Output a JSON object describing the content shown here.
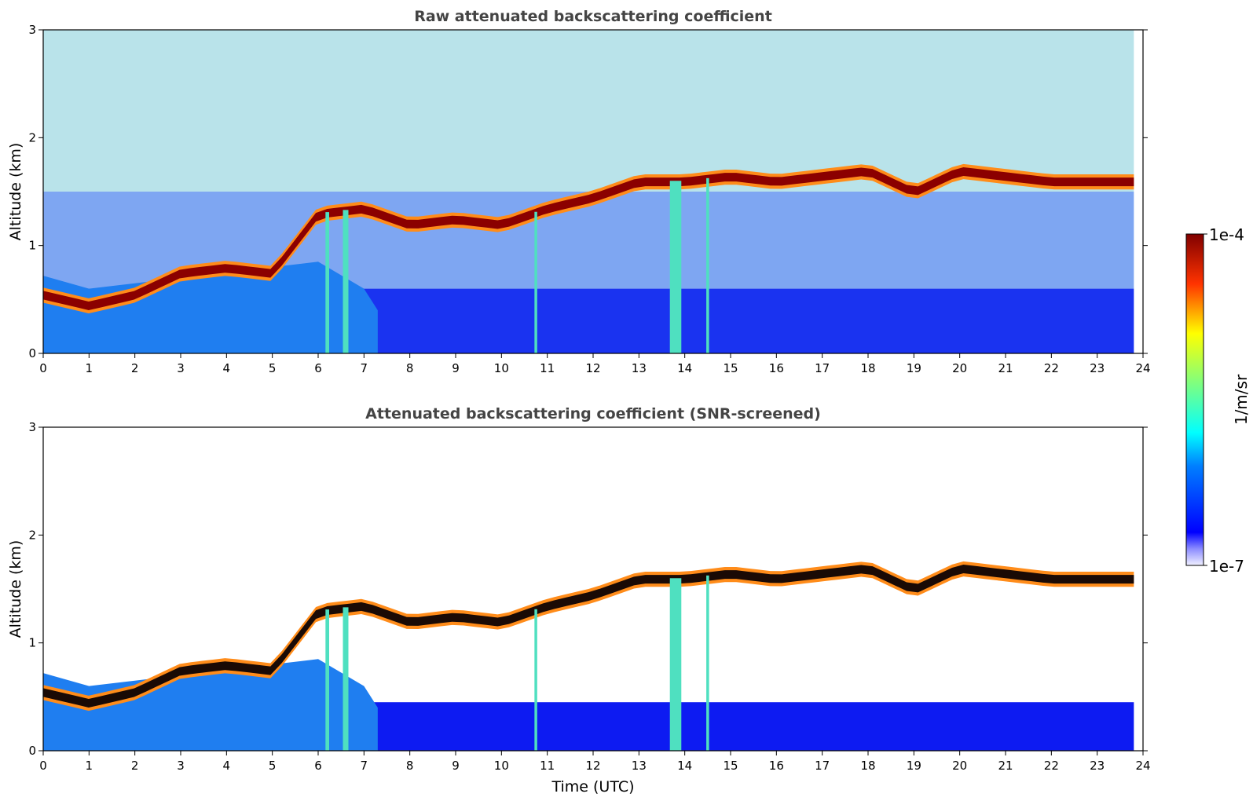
{
  "chart_data": [
    {
      "type": "heatmap",
      "title": "Raw attenuated backscattering coefficient",
      "xlabel": "",
      "ylabel": "Altitude (km)",
      "xlim": [
        0,
        24
      ],
      "ylim": [
        0,
        3
      ],
      "xticks": [
        "0",
        "1",
        "2",
        "3",
        "4",
        "5",
        "6",
        "7",
        "8",
        "9",
        "10",
        "11",
        "12",
        "13",
        "14",
        "15",
        "16",
        "17",
        "18",
        "19",
        "20",
        "21",
        "22",
        "23",
        "24"
      ],
      "yticks": [
        "0",
        "1",
        "2",
        "3"
      ],
      "data_end_time": 23.8,
      "cloud_layer_top_km": {
        "x": [
          0,
          1,
          2,
          3,
          4,
          5,
          6,
          7,
          8,
          9,
          10,
          11,
          12,
          13,
          14,
          15,
          16,
          17,
          18,
          19,
          20,
          21,
          22,
          23,
          23.8
        ],
        "y": [
          0.55,
          0.45,
          0.55,
          0.75,
          0.8,
          0.75,
          1.3,
          1.35,
          1.2,
          1.25,
          1.2,
          1.35,
          1.45,
          1.6,
          1.6,
          1.65,
          1.6,
          1.65,
          1.7,
          1.5,
          1.7,
          1.65,
          1.6,
          1.6,
          1.6
        ]
      }
    },
    {
      "type": "heatmap",
      "title": "Attenuated backscattering coefficient (SNR-screened)",
      "xlabel": "Time (UTC)",
      "ylabel": "Altitude (km)",
      "xlim": [
        0,
        24
      ],
      "ylim": [
        0,
        3
      ],
      "xticks": [
        "0",
        "1",
        "2",
        "3",
        "4",
        "5",
        "6",
        "7",
        "8",
        "9",
        "10",
        "11",
        "12",
        "13",
        "14",
        "15",
        "16",
        "17",
        "18",
        "19",
        "20",
        "21",
        "22",
        "23",
        "24"
      ],
      "yticks": [
        "0",
        "1",
        "2",
        "3"
      ],
      "data_end_time": 23.8
    }
  ],
  "colorbar": {
    "max_label": "1e-4",
    "min_label": "1e-7",
    "unit_label": "1/m/sr",
    "colormap": "jet",
    "scale": "log",
    "min_value": 1e-07,
    "max_value": 0.0001
  }
}
